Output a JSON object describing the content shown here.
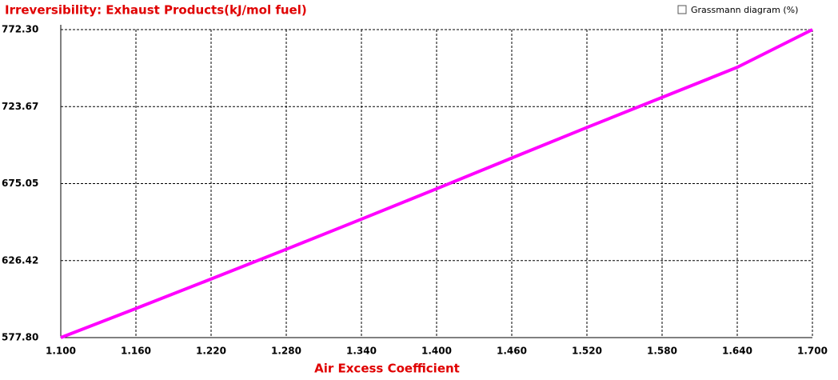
{
  "chart_data": {
    "type": "line",
    "title": "Irreversibility: Exhaust Products(kJ/mol fuel)",
    "x_label": "Air Excess Coefficient",
    "x": [
      1.1,
      1.16,
      1.22,
      1.28,
      1.34,
      1.4,
      1.46,
      1.52,
      1.58,
      1.64,
      1.7
    ],
    "series": [
      {
        "color": "#ff00ff",
        "values": [
          577.8,
          596.2,
          614.8,
          633.6,
          652.6,
          671.8,
          691.2,
          710.5,
          729.5,
          748.5,
          772.3
        ]
      }
    ],
    "xlim": [
      1.1,
      1.7
    ],
    "xticks": [
      {
        "value": 1.1,
        "label": "1.100"
      },
      {
        "value": 1.16,
        "label": "1.160"
      },
      {
        "value": 1.22,
        "label": "1.220"
      },
      {
        "value": 1.28,
        "label": "1.280"
      },
      {
        "value": 1.34,
        "label": "1.340"
      },
      {
        "value": 1.4,
        "label": "1.400"
      },
      {
        "value": 1.46,
        "label": "1.460"
      },
      {
        "value": 1.52,
        "label": "1.520"
      },
      {
        "value": 1.58,
        "label": "1.580"
      },
      {
        "value": 1.64,
        "label": "1.640"
      },
      {
        "value": 1.7,
        "label": "1.700"
      }
    ],
    "ylim": [
      577.8,
      772.3
    ],
    "yticks": [
      {
        "value": 577.8,
        "label": "577.80"
      },
      626.42,
      675.05,
      723.67,
      {
        "value": 772.3,
        "label": "772.30"
      }
    ],
    "grid": true
  },
  "controls": {
    "checkbox_label": "Grassmann diagram (%)"
  }
}
